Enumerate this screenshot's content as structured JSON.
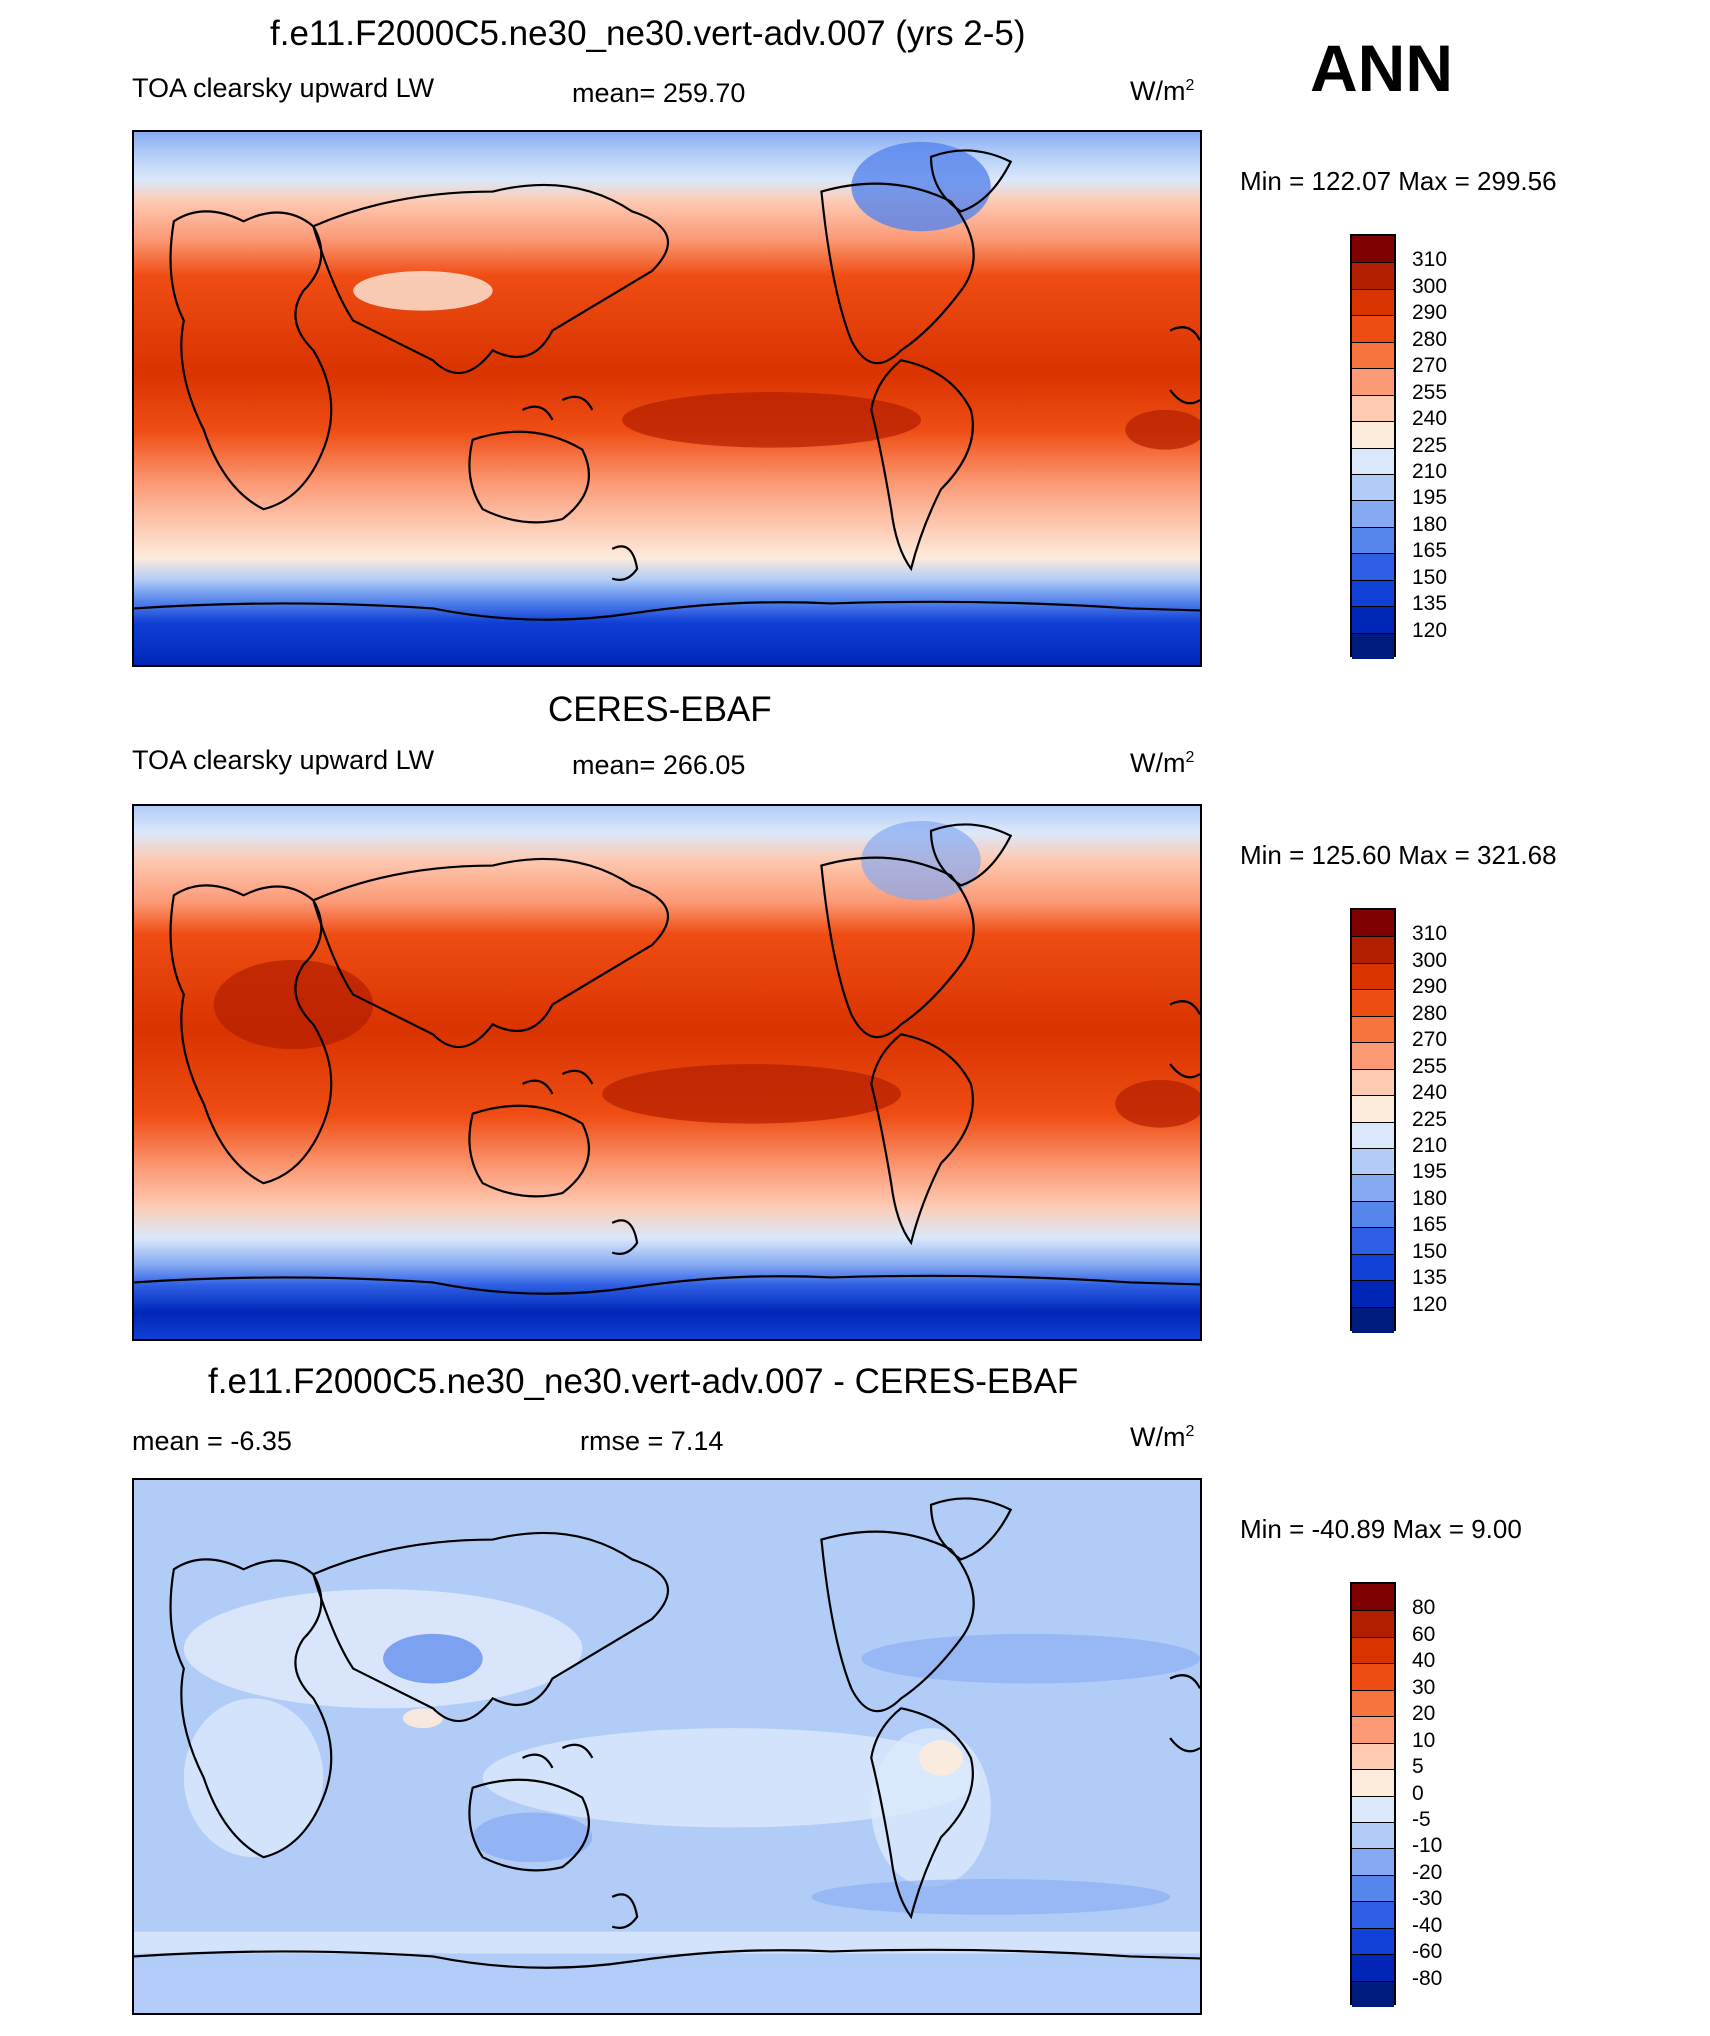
{
  "season": "ANN",
  "units_text": "W/m",
  "units_sup": "2",
  "panels": [
    {
      "title": "f.e11.F2000C5.ne30_ne30.vert-adv.007 (yrs 2-5)",
      "variable": "TOA clearsky upward LW",
      "mean_label": "mean=",
      "mean_value": "259.70",
      "minmax": "Min = 122.07 Max = 299.56",
      "min": 122.07,
      "max": 299.56
    },
    {
      "title": "CERES-EBAF",
      "variable": "TOA clearsky upward LW",
      "mean_label": "mean=",
      "mean_value": "266.05",
      "minmax": "Min = 125.60 Max = 321.68",
      "min": 125.6,
      "max": 321.68
    },
    {
      "title": "f.e11.F2000C5.ne30_ne30.vert-adv.007 - CERES-EBAF",
      "mean_label": "mean =",
      "mean_value": "-6.35",
      "rmse_label": "rmse =",
      "rmse_value": "7.14",
      "minmax": "Min = -40.89 Max =   9.00",
      "min": -40.89,
      "max": 9.0
    }
  ],
  "colorbars": {
    "field": {
      "levels": [
        "310",
        "300",
        "290",
        "280",
        "270",
        "255",
        "240",
        "225",
        "210",
        "195",
        "180",
        "165",
        "150",
        "135",
        "120"
      ],
      "colors": [
        "#7f0000",
        "#b21e00",
        "#d93300",
        "#ef4d14",
        "#f8743f",
        "#fc9a76",
        "#fdcab2",
        "#fdebdc",
        "#dbe8fb",
        "#b2ccf8",
        "#86aaf2",
        "#5685ec",
        "#2d5ee3",
        "#1140d6",
        "#0026b8",
        "#001b7e"
      ]
    },
    "diff": {
      "levels": [
        "80",
        "60",
        "40",
        "30",
        "20",
        "10",
        "5",
        "0",
        "-5",
        "-10",
        "-20",
        "-30",
        "-40",
        "-60",
        "-80"
      ],
      "colors": [
        "#7f0000",
        "#b21e00",
        "#d93300",
        "#ef4d14",
        "#f8743f",
        "#fc9a76",
        "#fdcab2",
        "#fdebdc",
        "#dbe8fb",
        "#b2ccf8",
        "#86aaf2",
        "#5685ec",
        "#2d5ee3",
        "#1140d6",
        "#0026b8",
        "#001b7e"
      ]
    }
  }
}
